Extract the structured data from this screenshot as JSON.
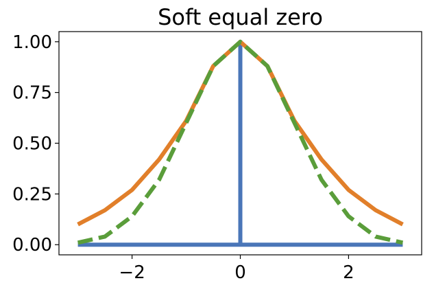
{
  "chart_data": {
    "type": "line",
    "title": "Soft equal zero",
    "xlabel": "",
    "ylabel": "",
    "xlim": [
      -3.35,
      3.35
    ],
    "ylim": [
      -0.05,
      1.05
    ],
    "xticks": [
      -2,
      0,
      2
    ],
    "xtick_labels": [
      "−2",
      "0",
      "2"
    ],
    "yticks": [
      0.0,
      0.25,
      0.5,
      0.75,
      1.0
    ],
    "ytick_labels": [
      "0.00",
      "0.25",
      "0.50",
      "0.75",
      "1.00"
    ],
    "grid": false,
    "legend": "none",
    "series": [
      {
        "color": "#4a76b8",
        "style": "solid",
        "points": [
          [
            -3,
            0
          ],
          [
            0,
            0
          ],
          [
            0,
            1
          ],
          [
            0,
            0
          ],
          [
            3,
            0
          ]
        ]
      },
      {
        "color": "#e17f2a",
        "style": "solid",
        "x": [
          -3,
          -2.5,
          -2,
          -1.5,
          -1,
          -0.5,
          0,
          0.5,
          1,
          1.5,
          2,
          2.5,
          3
        ],
        "y": [
          0.1,
          0.17,
          0.27,
          0.42,
          0.61,
          0.88,
          1.0,
          0.88,
          0.61,
          0.42,
          0.27,
          0.17,
          0.1
        ]
      },
      {
        "color": "#5a9d3a",
        "style": "dashed",
        "x": [
          -3,
          -2.5,
          -2,
          -1.5,
          -1,
          -0.5,
          0,
          0.5,
          1,
          1.5,
          2,
          2.5,
          3
        ],
        "y": [
          0.01,
          0.04,
          0.14,
          0.32,
          0.6,
          0.88,
          1.0,
          0.88,
          0.6,
          0.32,
          0.14,
          0.04,
          0.01
        ]
      }
    ]
  }
}
